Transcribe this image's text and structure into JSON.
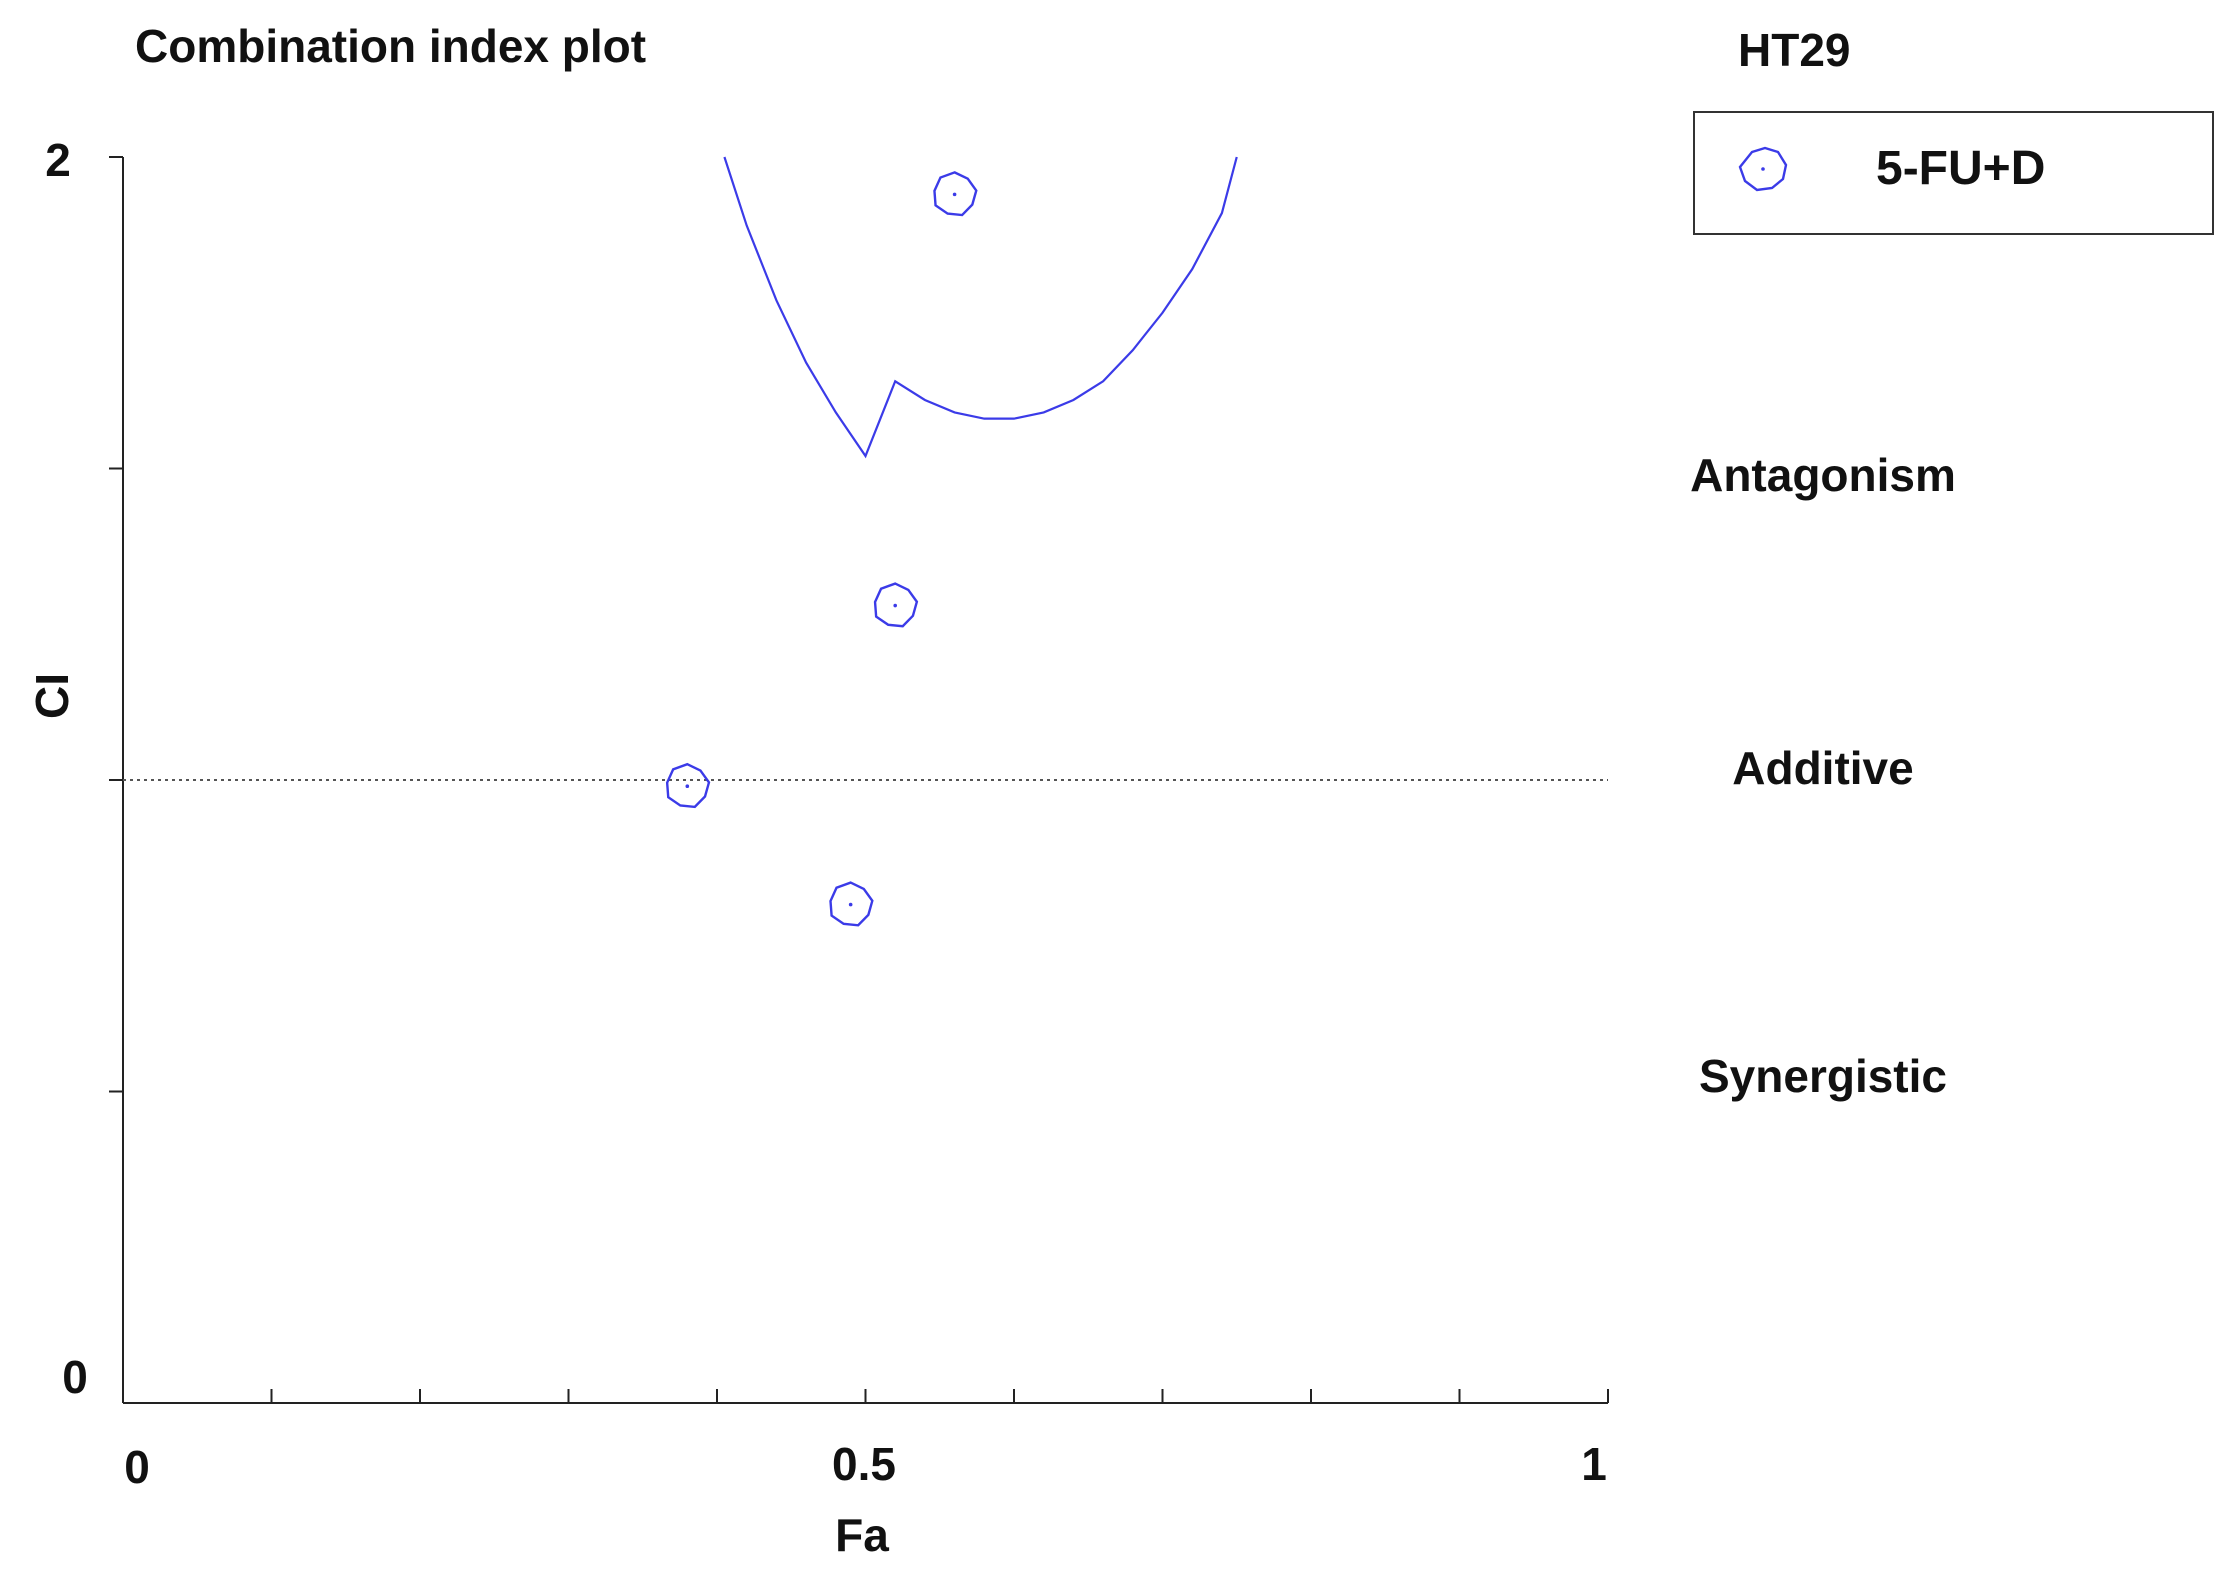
{
  "chart_data": {
    "type": "scatter",
    "title": "Combination index plot",
    "subtitle": "HT29",
    "xlabel": "Fa",
    "ylabel": "CI",
    "xlim": [
      0,
      1
    ],
    "ylim": [
      0,
      2
    ],
    "x_tick_labels": [
      "0",
      "0.5",
      "1"
    ],
    "y_tick_labels": [
      "0",
      "2"
    ],
    "x_minor_ticks": [
      0.1,
      0.2,
      0.3,
      0.4,
      0.5,
      0.6,
      0.7,
      0.8,
      0.9,
      1.0
    ],
    "y_minor_ticks": [
      0.5,
      1.0,
      1.5,
      2.0
    ],
    "grid": false,
    "legend_position": "top-right",
    "marker_color": "#3b3be8",
    "series": [
      {
        "name": "5-FU+D",
        "points": [
          {
            "x": 0.38,
            "y": 0.99
          },
          {
            "x": 0.49,
            "y": 0.8
          },
          {
            "x": 0.52,
            "y": 1.28
          },
          {
            "x": 0.56,
            "y": 1.94
          }
        ]
      }
    ],
    "fit_curve": [
      {
        "x": 0.405,
        "y": 2.0
      },
      {
        "x": 0.42,
        "y": 1.89
      },
      {
        "x": 0.44,
        "y": 1.77
      },
      {
        "x": 0.46,
        "y": 1.67
      },
      {
        "x": 0.48,
        "y": 1.59
      },
      {
        "x": 0.5,
        "y": 1.52
      },
      {
        "x": 0.52,
        "y": 1.64
      },
      {
        "x": 0.54,
        "y": 1.61
      },
      {
        "x": 0.56,
        "y": 1.59
      },
      {
        "x": 0.58,
        "y": 1.58
      },
      {
        "x": 0.6,
        "y": 1.58
      },
      {
        "x": 0.62,
        "y": 1.59
      },
      {
        "x": 0.64,
        "y": 1.61
      },
      {
        "x": 0.66,
        "y": 1.64
      },
      {
        "x": 0.68,
        "y": 1.69
      },
      {
        "x": 0.7,
        "y": 1.75
      },
      {
        "x": 0.72,
        "y": 1.82
      },
      {
        "x": 0.74,
        "y": 1.91
      },
      {
        "x": 0.75,
        "y": 2.0
      }
    ],
    "reference_line_y": 1.0,
    "annotations": [
      {
        "text": "Antagonism",
        "y": 1.5
      },
      {
        "text": "Additive",
        "y": 1.02
      },
      {
        "text": "Synergistic",
        "y": 0.53
      }
    ]
  }
}
